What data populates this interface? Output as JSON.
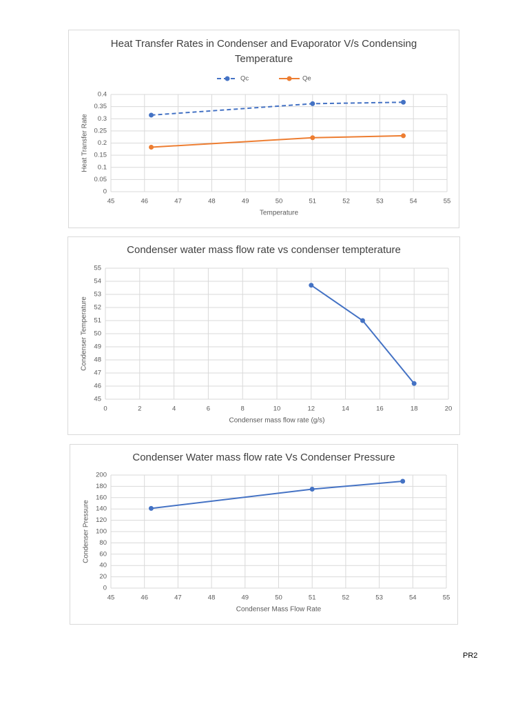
{
  "chart_data": [
    {
      "type": "line",
      "title": "Heat Transfer Rates in Condenser and Evaporator V/s Condensing Temperature",
      "x_label": "Temperature",
      "y_label": "Heat Transfer Rate",
      "x": [
        46.2,
        51,
        53.7
      ],
      "series": [
        {
          "name": "Qc",
          "color": "#4472c4",
          "line_style": "dashed",
          "values": [
            0.315,
            0.362,
            0.368
          ]
        },
        {
          "name": "Qe",
          "color": "#ed7d31",
          "line_style": "solid",
          "values": [
            0.183,
            0.222,
            0.23
          ]
        }
      ],
      "xlim": [
        45,
        55
      ],
      "xticks": [
        45,
        46,
        47,
        48,
        49,
        50,
        51,
        52,
        53,
        54,
        55
      ],
      "ylim": [
        0,
        0.4
      ],
      "yticks": [
        0,
        0.05,
        0.1,
        0.15,
        0.2,
        0.25,
        0.3,
        0.35,
        0.4
      ],
      "grid": true,
      "legend": "top"
    },
    {
      "type": "line",
      "title": "Condenser water mass flow rate vs condenser tempterature",
      "x_label": "Condenser mass flow rate (g/s)",
      "y_label": "Condenser Temperature",
      "x": [
        12,
        15,
        18
      ],
      "values": [
        53.7,
        51,
        46.2
      ],
      "color": "#4472c4",
      "xlim": [
        0,
        20
      ],
      "xticks": [
        0,
        2,
        4,
        6,
        8,
        10,
        12,
        14,
        16,
        18,
        20
      ],
      "ylim": [
        45,
        55
      ],
      "yticks": [
        45,
        46,
        47,
        48,
        49,
        50,
        51,
        52,
        53,
        54,
        55
      ],
      "grid": true
    },
    {
      "type": "line",
      "title": "Condenser Water mass flow rate Vs Condenser Pressure",
      "x_label": "Condenser Mass Flow Rate",
      "y_label": "Condenser Pressure",
      "x": [
        46.2,
        51,
        53.7
      ],
      "values": [
        141,
        175,
        189
      ],
      "color": "#4472c4",
      "xlim": [
        45,
        55
      ],
      "xticks": [
        45,
        46,
        47,
        48,
        49,
        50,
        51,
        52,
        53,
        54,
        55
      ],
      "ylim": [
        0,
        200
      ],
      "yticks": [
        0,
        20,
        40,
        60,
        80,
        100,
        120,
        140,
        160,
        180,
        200
      ],
      "grid": true
    }
  ],
  "footer": "PR2"
}
